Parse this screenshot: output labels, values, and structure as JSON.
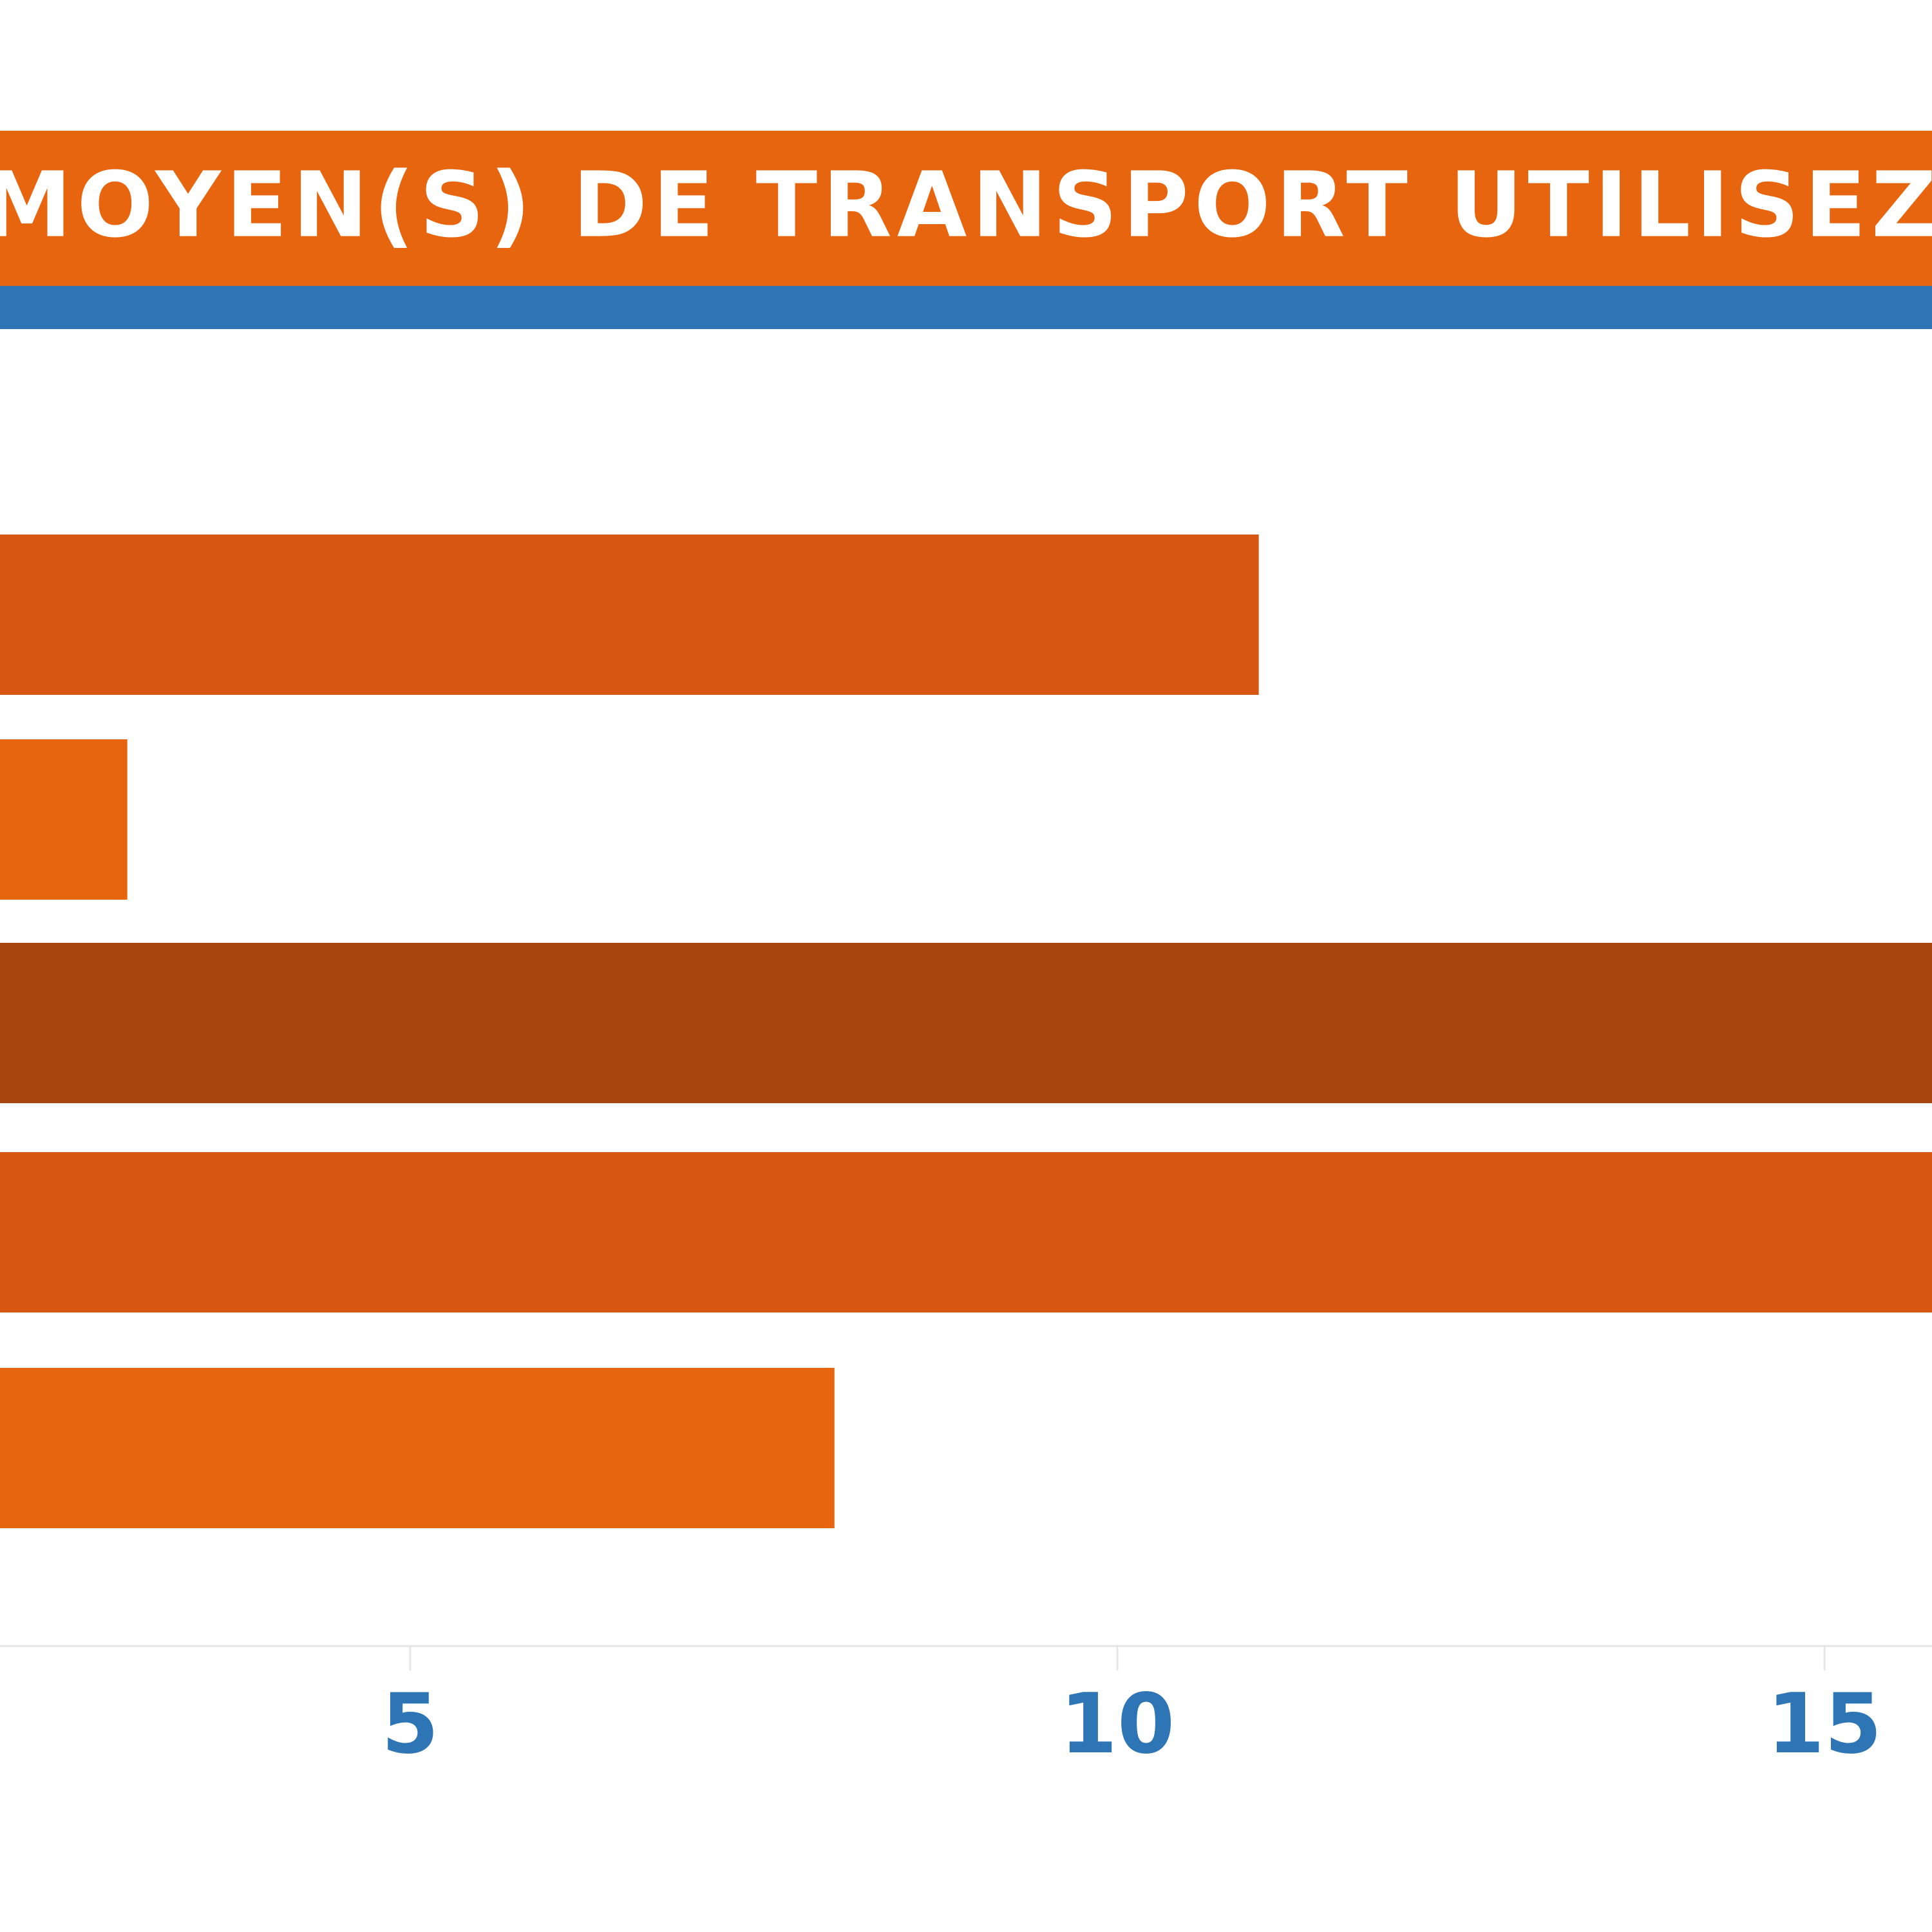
{
  "chart_data": {
    "type": "barh",
    "title": "MOYEN(S) DE TRANSPORT UTILISEZ-VOUS AU QUO",
    "values": [
      11,
      3,
      17,
      16,
      8
    ],
    "colors": [
      "#d75712",
      "#e8650f",
      "#a84410",
      "#d75712",
      "#e8650f"
    ],
    "xlim": [
      2.1,
      15.76
    ],
    "xticks": [
      5,
      10,
      15
    ]
  }
}
